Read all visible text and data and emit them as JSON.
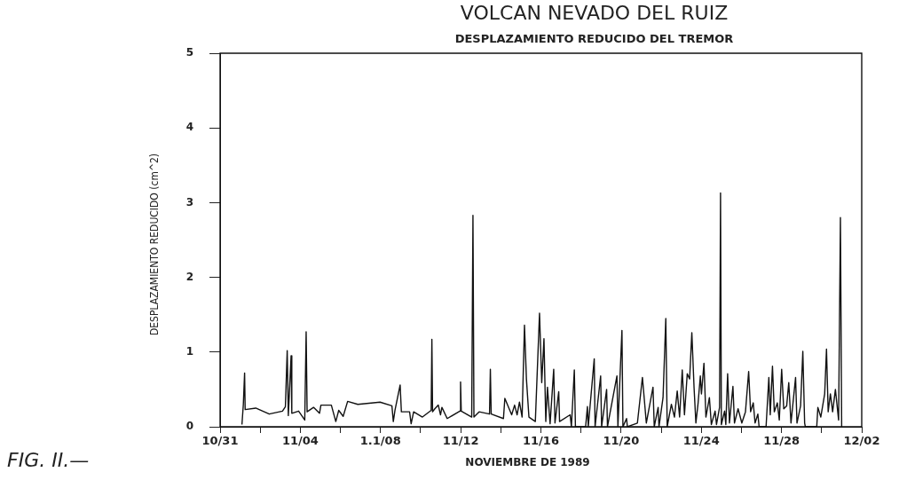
{
  "chart_data": {
    "type": "line",
    "title": "VOLCAN NEVADO DEL RUIZ",
    "subtitle": "DESPLAZAMIENTO REDUCIDO DEL TREMOR",
    "xlabel": "NOVIEMBRE DE 1989",
    "ylabel": "DESPLAZAMIENTO REDUCIDO (cm^2)",
    "annotations": [
      "FIG. II.—"
    ],
    "x": [
      "1989-11-01T02:10",
      "1989-11-01T03:50",
      "1989-11-01T05:20",
      "1989-11-01T06:00",
      "1989-11-01T18:40",
      "1989-11-02T10:50",
      "1989-11-03T02:40",
      "1989-11-03T06:10",
      "1989-11-03T08:20",
      "1989-11-03T09:40",
      "1989-11-03T13:00",
      "1989-11-03T13:50",
      "1989-11-03T22:00",
      "1989-11-04T05:20",
      "1989-11-04T07:00",
      "1989-11-04T08:10",
      "1989-11-04T15:50",
      "1989-11-04T23:00",
      "1989-11-05T00:40",
      "1989-11-05T13:10",
      "1989-11-05T18:30",
      "1989-11-05T22:00",
      "1989-11-06T03:20",
      "1989-11-06T08:40",
      "1989-11-06T20:50",
      "1989-11-07T23:30",
      "1989-11-08T13:40",
      "1989-11-08T15:20",
      "1989-11-08T17:20",
      "1989-11-08T23:30",
      "1989-11-09T01:00",
      "1989-11-09T10:50",
      "1989-11-09T12:40",
      "1989-11-09T15:40",
      "1989-11-10T02:10",
      "1989-11-10T12:40",
      "1989-11-10T13:30",
      "1989-11-10T14:20",
      "1989-11-10T17:00",
      "1989-11-10T21:10",
      "1989-11-10T23:50",
      "1989-11-11T01:30",
      "1989-11-11T07:50",
      "1989-11-11T23:00",
      "1989-11-11T23:50",
      "1989-11-12T00:40",
      "1989-11-12T13:10",
      "1989-11-12T14:40",
      "1989-11-12T15:50",
      "1989-11-12T22:00",
      "1989-11-13T10:30",
      "1989-11-13T11:30",
      "1989-11-13T12:30",
      "1989-11-14T03:10",
      "1989-11-14T04:50",
      "1989-11-14T13:00",
      "1989-11-14T16:30",
      "1989-11-14T19:30",
      "1989-11-14T22:20",
      "1989-11-15T01:30",
      "1989-11-15T04:20",
      "1989-11-15T06:40",
      "1989-11-15T09:40",
      "1989-11-15T17:20",
      "1989-11-15T22:20",
      "1989-11-16T01:00",
      "1989-11-16T03:40",
      "1989-11-16T05:50",
      "1989-11-16T07:50",
      "1989-11-16T11:00",
      "1989-11-16T15:20",
      "1989-11-16T16:50",
      "1989-11-16T21:20",
      "1989-11-16T22:20",
      "1989-11-17T11:00",
      "1989-11-17T12:30",
      "1989-11-17T16:00",
      "1989-11-17T17:20",
      "1989-11-18T05:30",
      "1989-11-18T07:40",
      "1989-11-18T08:40",
      "1989-11-18T15:50",
      "1989-11-18T16:50",
      "1989-11-18T23:30",
      "1989-11-19T00:40",
      "1989-11-19T06:40",
      "1989-11-19T07:40",
      "1989-11-19T19:00",
      "1989-11-19T20:10",
      "1989-11-20T01:00",
      "1989-11-20T02:10",
      "1989-11-20T06:30",
      "1989-11-20T07:30",
      "1989-11-20T19:30",
      "1989-11-21T01:30",
      "1989-11-21T03:40",
      "1989-11-21T06:10",
      "1989-11-21T14:10",
      "1989-11-21T15:40",
      "1989-11-21T20:20",
      "1989-11-21T21:20",
      "1989-11-22T02:10",
      "1989-11-22T05:30",
      "1989-11-22T07:10",
      "1989-11-22T12:10",
      "1989-11-22T15:50",
      "1989-11-22T19:10",
      "1989-11-22T22:00",
      "1989-11-23T01:10",
      "1989-11-23T03:50",
      "1989-11-23T07:10",
      "1989-11-23T10:00",
      "1989-11-23T12:40",
      "1989-11-23T15:20",
      "1989-11-23T17:30",
      "1989-11-23T20:10",
      "1989-11-23T22:50",
      "1989-11-24T00:10",
      "1989-11-24T03:10",
      "1989-11-24T05:30",
      "1989-11-24T09:40",
      "1989-11-24T12:00",
      "1989-11-24T16:30",
      "1989-11-24T18:10",
      "1989-11-24T21:50",
      "1989-11-24T23:00",
      "1989-11-25T00:00",
      "1989-11-25T03:50",
      "1989-11-25T05:20",
      "1989-11-25T07:30",
      "1989-11-25T09:40",
      "1989-11-25T13:50",
      "1989-11-25T15:40",
      "1989-11-25T20:00",
      "1989-11-26T00:30",
      "1989-11-26T04:50",
      "1989-11-26T08:40",
      "1989-11-26T11:00",
      "1989-11-26T14:10",
      "1989-11-26T16:20",
      "1989-11-26T19:40",
      "1989-11-26T21:10",
      "1989-11-27T05:30",
      "1989-11-27T08:50",
      "1989-11-27T10:30",
      "1989-11-27T13:10",
      "1989-11-27T15:20",
      "1989-11-27T19:00",
      "1989-11-27T21:20",
      "1989-11-28T00:10",
      "1989-11-28T02:40",
      "1989-11-28T06:10",
      "1989-11-28T08:40",
      "1989-11-28T11:20",
      "1989-11-28T16:50",
      "1989-11-28T18:30",
      "1989-11-28T22:50",
      "1989-11-29T01:30",
      "1989-11-29T03:40",
      "1989-11-29T04:30",
      "1989-11-29T18:10",
      "1989-11-29T19:30",
      "1989-11-29T23:00",
      "1989-11-30T03:40",
      "1989-11-30T05:50",
      "1989-11-30T07:50",
      "1989-11-30T10:30",
      "1989-11-30T13:10",
      "1989-11-30T16:30",
      "1989-11-30T20:20",
      "1989-11-30T22:30",
      "1989-12-01T00:00"
    ],
    "series": [
      {
        "color": "#111111",
        "values": [
          0.03,
          0.3,
          0.72,
          0.23,
          0.25,
          0.17,
          0.21,
          0.27,
          1.02,
          0.15,
          0.95,
          0.18,
          0.21,
          0.09,
          1.27,
          0.2,
          0.26,
          0.18,
          0.29,
          0.29,
          0.07,
          0.22,
          0.14,
          0.34,
          0.3,
          0.33,
          0.28,
          0.07,
          0.22,
          0.56,
          0.2,
          0.2,
          0.04,
          0.2,
          0.13,
          0.22,
          1.17,
          0.2,
          0.24,
          0.29,
          0.16,
          0.26,
          0.11,
          0.21,
          0.6,
          0.21,
          0.13,
          2.83,
          0.13,
          0.2,
          0.17,
          0.77,
          0.17,
          0.11,
          0.38,
          0.16,
          0.29,
          0.16,
          0.33,
          0.13,
          1.36,
          0.64,
          0.13,
          0.07,
          1.52,
          0.59,
          1.18,
          0.07,
          0.53,
          0.04,
          0.77,
          0.05,
          0.47,
          0.07,
          0.16,
          0,
          0.76,
          0,
          0,
          0.27,
          0,
          0.91,
          0,
          0.68,
          0,
          0.5,
          0,
          0.68,
          0,
          1.29,
          0,
          0.11,
          0,
          0.05,
          0.66,
          0.38,
          0.05,
          0.53,
          0,
          0.26,
          0,
          0.39,
          1.45,
          0,
          0.3,
          0.13,
          0.48,
          0.13,
          0.76,
          0.16,
          0.71,
          0.64,
          1.26,
          0.52,
          0.05,
          0.32,
          0.68,
          0.44,
          0.85,
          0.13,
          0.39,
          0.03,
          0.21,
          0.03,
          0.26,
          3.13,
          0.03,
          0.21,
          0.03,
          0.71,
          0.05,
          0.54,
          0.05,
          0.24,
          0.05,
          0.2,
          0.74,
          0.2,
          0.32,
          0.05,
          0.17,
          0,
          0,
          0.66,
          0.16,
          0.81,
          0.2,
          0.32,
          0.09,
          0.77,
          0.24,
          0.28,
          0.59,
          0.05,
          0.66,
          0.05,
          0.28,
          1.01,
          0.05,
          0,
          0,
          0.26,
          0.13,
          0.44,
          1.04,
          0.2,
          0.44,
          0.2,
          0.5,
          0.09,
          2.8,
          0
        ]
      }
    ],
    "xlim": [
      "1989-10-31",
      "1989-12-02"
    ],
    "xticks": [
      {
        "value": "1989-10-31",
        "label": "10/31"
      },
      {
        "value": "1989-11-02",
        "label": null
      },
      {
        "value": "1989-11-04",
        "label": "11/04"
      },
      {
        "value": "1989-11-06",
        "label": null
      },
      {
        "value": "1989-11-08",
        "label": "1.1/08"
      },
      {
        "value": "1989-11-10",
        "label": null
      },
      {
        "value": "1989-11-12",
        "label": "11/12"
      },
      {
        "value": "1989-11-14",
        "label": null
      },
      {
        "value": "1989-11-16",
        "label": "11/16"
      },
      {
        "value": "1989-11-18",
        "label": null
      },
      {
        "value": "1989-11-20",
        "label": "11/20"
      },
      {
        "value": "1989-11-22",
        "label": null
      },
      {
        "value": "1989-11-24",
        "label": "11/24"
      },
      {
        "value": "1989-11-26",
        "label": null
      },
      {
        "value": "1989-11-28",
        "label": "11/28"
      },
      {
        "value": "1989-11-30",
        "label": null
      },
      {
        "value": "1989-12-02",
        "label": "12/02"
      }
    ],
    "ylim": [
      0,
      5
    ],
    "yticks": [
      0,
      1,
      2,
      3,
      4,
      5
    ],
    "grid": false,
    "legend": false,
    "marker": "none",
    "line_style": "solid"
  }
}
